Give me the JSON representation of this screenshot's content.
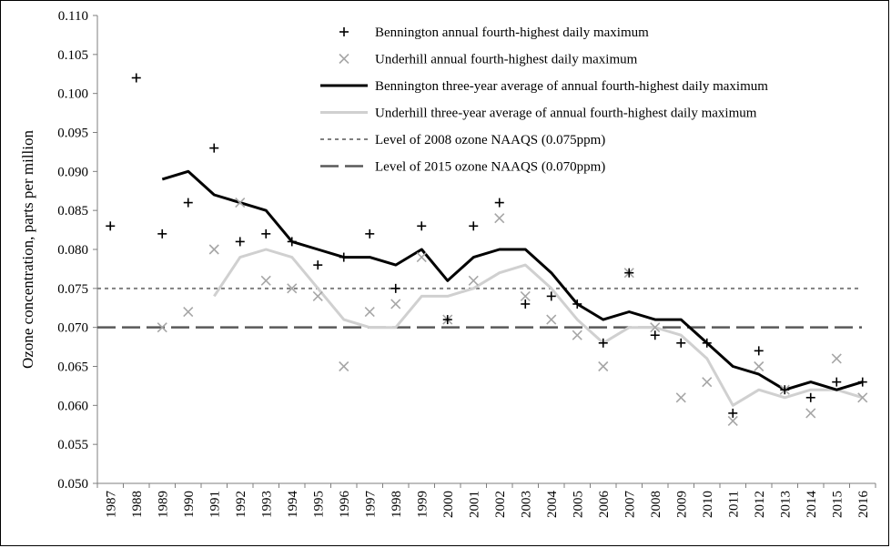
{
  "chart_data": {
    "type": "line",
    "title": "",
    "xlabel": "",
    "ylabel": "Ozone concentration, parts per million",
    "ylim": [
      0.05,
      0.11
    ],
    "y_ticks": [
      "0.050",
      "0.055",
      "0.060",
      "0.065",
      "0.070",
      "0.075",
      "0.080",
      "0.085",
      "0.090",
      "0.095",
      "0.100",
      "0.105",
      "0.110"
    ],
    "categories": [
      "1987",
      "1988",
      "1989",
      "1990",
      "1991",
      "1992",
      "1993",
      "1994",
      "1995",
      "1996",
      "1997",
      "1998",
      "1999",
      "2000",
      "2001",
      "2002",
      "2003",
      "2004",
      "2005",
      "2006",
      "2007",
      "2008",
      "2009",
      "2010",
      "2011",
      "2012",
      "2013",
      "2014",
      "2015",
      "2016"
    ],
    "grid": false,
    "legend_position": "top-right",
    "series": [
      {
        "name": "Bennington annual fourth-highest daily maximum",
        "kind": "scatter",
        "marker": "plus",
        "color": "#000000",
        "values": [
          0.083,
          0.102,
          0.082,
          0.086,
          0.093,
          0.081,
          0.082,
          0.081,
          0.078,
          0.079,
          0.082,
          0.075,
          0.083,
          0.071,
          0.083,
          0.086,
          0.073,
          0.074,
          0.073,
          0.068,
          0.077,
          0.069,
          0.068,
          0.068,
          0.059,
          0.067,
          0.062,
          0.061,
          0.063,
          0.063
        ]
      },
      {
        "name": "Underhill annual fourth-highest daily maximum",
        "kind": "scatter",
        "marker": "x",
        "color": "#a6a6a6",
        "values": [
          null,
          null,
          0.07,
          0.072,
          0.08,
          0.086,
          0.076,
          0.075,
          0.074,
          0.065,
          0.072,
          0.073,
          0.079,
          0.071,
          0.076,
          0.084,
          0.074,
          0.071,
          0.069,
          0.065,
          0.077,
          0.07,
          0.061,
          0.063,
          0.058,
          0.065,
          0.062,
          0.059,
          0.066,
          0.061
        ]
      },
      {
        "name": "Bennington three-year average of annual fourth-highest daily maximum",
        "kind": "line",
        "style": "solid-thick",
        "color": "#000000",
        "values": [
          null,
          null,
          0.089,
          0.09,
          0.087,
          0.086,
          0.085,
          0.081,
          0.08,
          0.079,
          0.079,
          0.078,
          0.08,
          0.076,
          0.079,
          0.08,
          0.08,
          0.077,
          0.073,
          0.071,
          0.072,
          0.071,
          0.071,
          0.068,
          0.065,
          0.064,
          0.062,
          0.063,
          0.062,
          0.063
        ]
      },
      {
        "name": "Underhill three-year average of annual fourth-highest daily maximum",
        "kind": "line",
        "style": "solid-light",
        "color": "#d0d0d0",
        "values": [
          null,
          null,
          null,
          null,
          0.074,
          0.079,
          0.08,
          0.079,
          0.075,
          0.071,
          0.07,
          0.07,
          0.074,
          0.074,
          0.075,
          0.077,
          0.078,
          0.075,
          0.071,
          0.068,
          0.07,
          0.07,
          0.069,
          0.066,
          0.06,
          0.062,
          0.061,
          0.062,
          0.062,
          0.061
        ]
      },
      {
        "name": "Level of 2008 ozone NAAQS (0.075ppm)",
        "kind": "hline",
        "style": "short-dash",
        "color": "#808080",
        "value": 0.075
      },
      {
        "name": "Level of 2015 ozone NAAQS (0.070ppm)",
        "kind": "hline",
        "style": "long-dash",
        "color": "#595959",
        "value": 0.07
      }
    ]
  }
}
